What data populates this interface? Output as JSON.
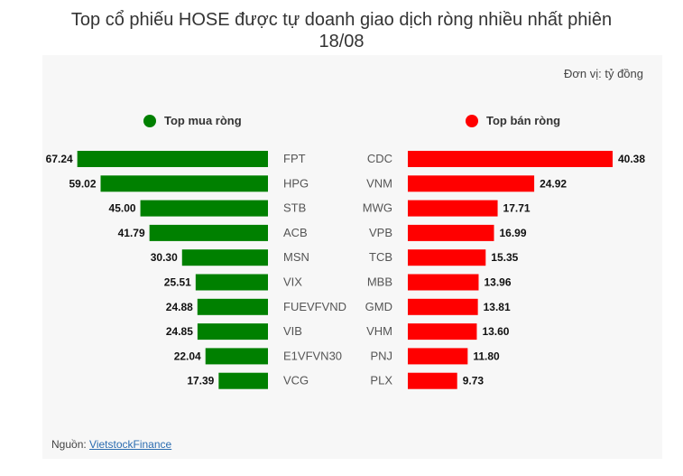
{
  "title_line1": "Top cổ phiếu HOSE được tự doanh giao dịch ròng nhiều nhất phiên",
  "title_line2": "18/08",
  "unit": "Đơn vị: tỷ đồng",
  "source": {
    "label": "Nguồn: ",
    "link": "VietstockFinance"
  },
  "colors": {
    "buy": "#008000",
    "sell": "#ff0000"
  },
  "chart_data": [
    {
      "type": "bar",
      "orientation": "horizontal",
      "title": "Top mua ròng",
      "categories": [
        "FPT",
        "HPG",
        "STB",
        "ACB",
        "MSN",
        "VIX",
        "FUEVFVND",
        "VIB",
        "E1VFVN30",
        "VCG"
      ],
      "values": [
        67.24,
        59.02,
        45.0,
        41.79,
        30.3,
        25.51,
        24.88,
        24.85,
        22.04,
        17.39
      ],
      "labels": [
        "67.24",
        "59.02",
        "45.00",
        "41.79",
        "30.30",
        "25.51",
        "24.88",
        "24.85",
        "22.04",
        "17.39"
      ],
      "color": "#008000",
      "xlim": [
        0,
        70
      ]
    },
    {
      "type": "bar",
      "orientation": "horizontal",
      "title": "Top bán ròng",
      "categories": [
        "CDC",
        "VNM",
        "MWG",
        "VPB",
        "TCB",
        "MBB",
        "GMD",
        "VHM",
        "PNJ",
        "PLX"
      ],
      "values": [
        40.38,
        24.92,
        17.71,
        16.99,
        15.35,
        13.96,
        13.81,
        13.6,
        11.8,
        9.73
      ],
      "labels": [
        "40.38",
        "24.92",
        "17.71",
        "16.99",
        "15.35",
        "13.96",
        "13.81",
        "13.60",
        "11.80",
        "9.73"
      ],
      "color": "#ff0000",
      "xlim": [
        0,
        40.38
      ]
    }
  ]
}
